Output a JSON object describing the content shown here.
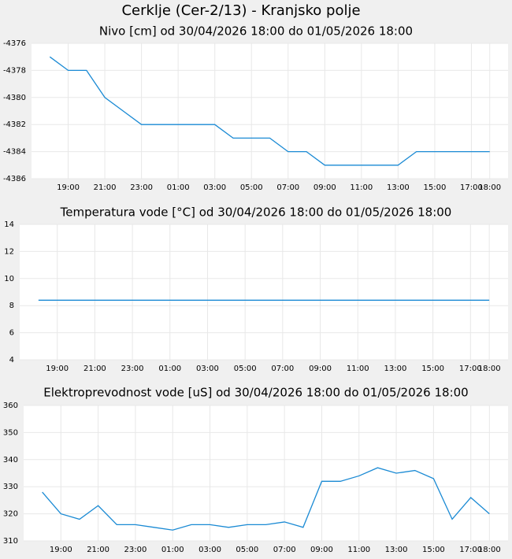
{
  "title": "Cerklje (Cer-2/13) - Kranjsko polje",
  "chart_data": [
    {
      "type": "line",
      "title": "Nivo [cm] od 30/04/2026 18:00 do 01/05/2026 18:00",
      "x": [
        0,
        1,
        2,
        3,
        4,
        5,
        6,
        7,
        8,
        9,
        10,
        11,
        12,
        13,
        14,
        15,
        16,
        17,
        18,
        19,
        20,
        21,
        22,
        23,
        24
      ],
      "values": [
        -4377,
        -4378,
        -4378,
        -4380,
        -4381,
        -4382,
        -4382,
        -4382,
        -4382,
        -4382,
        -4383,
        -4383,
        -4383,
        -4384,
        -4384,
        -4385,
        -4385,
        -4385,
        -4385,
        -4385,
        -4384,
        -4384,
        -4384,
        -4384,
        -4384
      ],
      "color": "#1a8ad4",
      "grid": true,
      "xlim": [
        -1,
        25
      ],
      "xticks": [
        {
          "value": 1,
          "label": "19:00"
        },
        {
          "value": 3,
          "label": "21:00"
        },
        {
          "value": 5,
          "label": "23:00"
        },
        {
          "value": 7,
          "label": "01:00"
        },
        {
          "value": 9,
          "label": "03:00"
        },
        {
          "value": 11,
          "label": "05:00"
        },
        {
          "value": 13,
          "label": "07:00"
        },
        {
          "value": 15,
          "label": "09:00"
        },
        {
          "value": 17,
          "label": "11:00"
        },
        {
          "value": 19,
          "label": "13:00"
        },
        {
          "value": 21,
          "label": "15:00"
        },
        {
          "value": 23,
          "label": "17:00"
        },
        {
          "value": 24,
          "label": "18:00"
        }
      ],
      "ylim": [
        -4386,
        -4376
      ],
      "yticks": [
        -4386,
        -4384,
        -4382,
        -4380,
        -4378,
        -4376
      ]
    },
    {
      "type": "line",
      "title": "Temperatura vode [°C] od 30/04/2026 18:00 do 01/05/2026 18:00",
      "x": [
        0,
        1,
        2,
        3,
        4,
        5,
        6,
        7,
        8,
        9,
        10,
        11,
        12,
        13,
        14,
        15,
        16,
        17,
        18,
        19,
        20,
        21,
        22,
        23,
        24
      ],
      "values": [
        8.4,
        8.4,
        8.4,
        8.4,
        8.4,
        8.4,
        8.4,
        8.4,
        8.4,
        8.4,
        8.4,
        8.4,
        8.4,
        8.4,
        8.4,
        8.4,
        8.4,
        8.4,
        8.4,
        8.4,
        8.4,
        8.4,
        8.4,
        8.4,
        8.4
      ],
      "color": "#1a8ad4",
      "grid": true,
      "xlim": [
        -1,
        25
      ],
      "xticks": [
        {
          "value": 1,
          "label": "19:00"
        },
        {
          "value": 3,
          "label": "21:00"
        },
        {
          "value": 5,
          "label": "23:00"
        },
        {
          "value": 7,
          "label": "01:00"
        },
        {
          "value": 9,
          "label": "03:00"
        },
        {
          "value": 11,
          "label": "05:00"
        },
        {
          "value": 13,
          "label": "07:00"
        },
        {
          "value": 15,
          "label": "09:00"
        },
        {
          "value": 17,
          "label": "11:00"
        },
        {
          "value": 19,
          "label": "13:00"
        },
        {
          "value": 21,
          "label": "15:00"
        },
        {
          "value": 23,
          "label": "17:00"
        },
        {
          "value": 24,
          "label": "18:00"
        }
      ],
      "ylim": [
        4,
        14
      ],
      "yticks": [
        4,
        6,
        8,
        10,
        12,
        14
      ]
    },
    {
      "type": "line",
      "title": "Elektroprevodnost vode [uS] od 30/04/2026 18:00 do 01/05/2026 18:00",
      "x": [
        0,
        1,
        2,
        3,
        4,
        5,
        6,
        7,
        8,
        9,
        10,
        11,
        12,
        13,
        14,
        15,
        16,
        17,
        18,
        19,
        20,
        21,
        22,
        23,
        24
      ],
      "values": [
        328,
        320,
        318,
        323,
        316,
        316,
        315,
        314,
        316,
        316,
        315,
        316,
        316,
        317,
        315,
        332,
        332,
        334,
        337,
        335,
        336,
        333,
        318,
        326,
        320
      ],
      "color": "#1a8ad4",
      "grid": true,
      "xlim": [
        -1,
        25
      ],
      "xticks": [
        {
          "value": 1,
          "label": "19:00"
        },
        {
          "value": 3,
          "label": "21:00"
        },
        {
          "value": 5,
          "label": "23:00"
        },
        {
          "value": 7,
          "label": "01:00"
        },
        {
          "value": 9,
          "label": "03:00"
        },
        {
          "value": 11,
          "label": "05:00"
        },
        {
          "value": 13,
          "label": "07:00"
        },
        {
          "value": 15,
          "label": "09:00"
        },
        {
          "value": 17,
          "label": "11:00"
        },
        {
          "value": 19,
          "label": "13:00"
        },
        {
          "value": 21,
          "label": "15:00"
        },
        {
          "value": 23,
          "label": "17:00"
        },
        {
          "value": 24,
          "label": "18:00"
        }
      ],
      "ylim": [
        310,
        360
      ],
      "yticks": [
        310,
        320,
        330,
        340,
        350,
        360
      ]
    }
  ]
}
